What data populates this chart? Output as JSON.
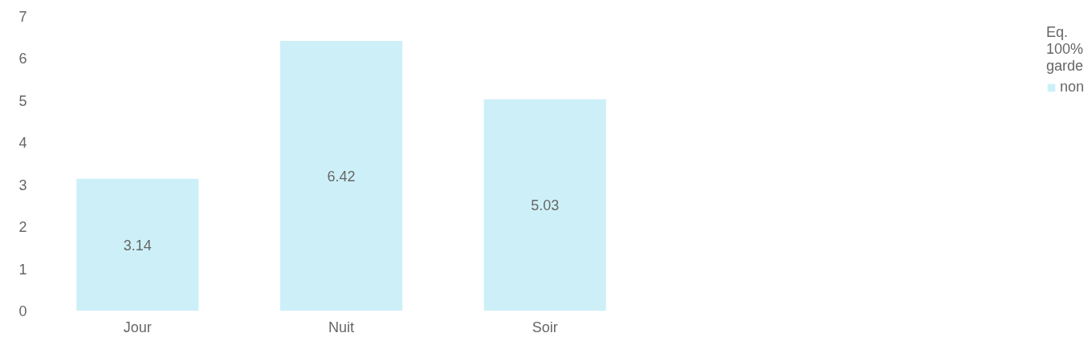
{
  "chart_data": {
    "type": "bar",
    "categories": [
      "Jour",
      "Nuit",
      "Soir"
    ],
    "series": [
      {
        "name": "non",
        "color": "#cdf0f8",
        "values": [
          3.14,
          6.42,
          5.03
        ]
      }
    ],
    "legend_title": "Eq. 100% garde",
    "legend": "right",
    "ylim": [
      0,
      7
    ],
    "yticks": [
      0,
      1,
      2,
      3,
      4,
      5,
      6,
      7
    ],
    "grid": false,
    "data_labels": true
  }
}
